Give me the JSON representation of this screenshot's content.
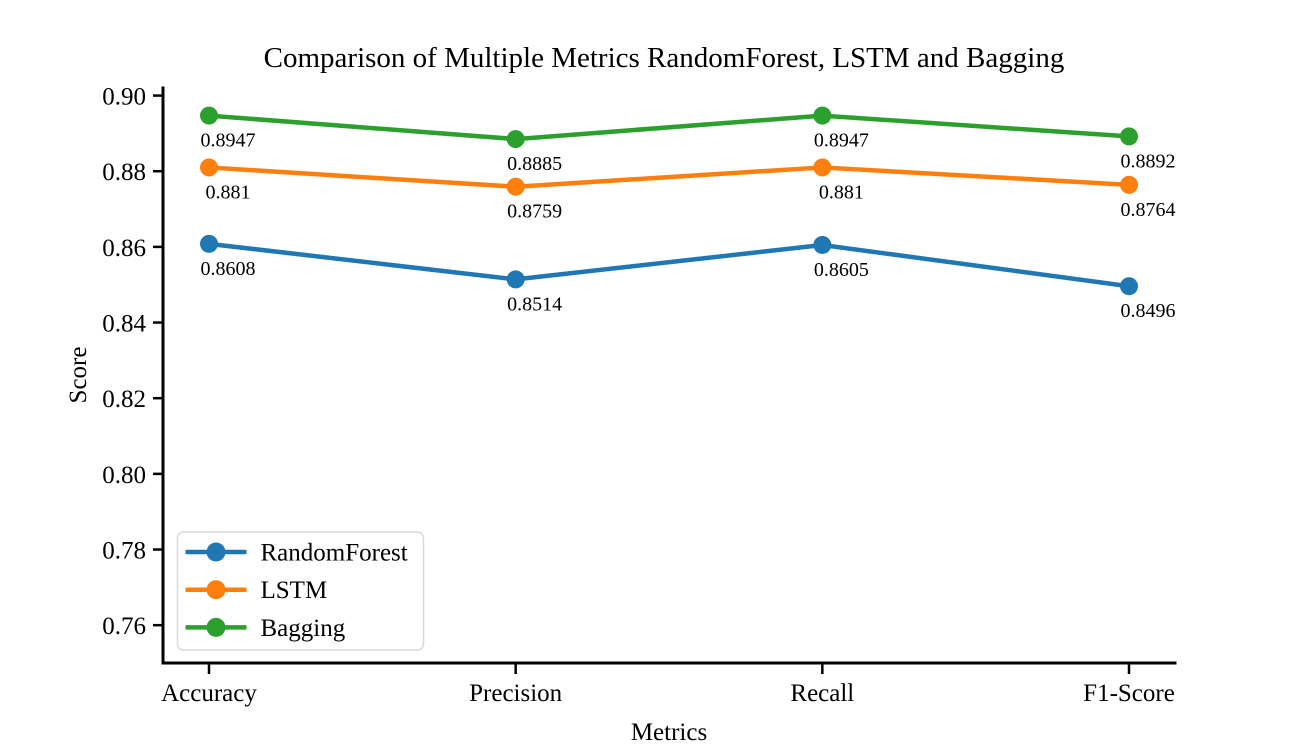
{
  "chart_data": {
    "type": "line",
    "title": "Comparison of Multiple Metrics RandomForest, LSTM and Bagging",
    "xlabel": "Metrics",
    "ylabel": "Score",
    "categories": [
      "Accuracy",
      "Precision",
      "Recall",
      "F1-Score"
    ],
    "series": [
      {
        "name": "RandomForest",
        "color": "#1f77b4",
        "values": [
          0.8608,
          0.8514,
          0.8605,
          0.8496
        ],
        "labels": [
          "0.8608",
          "0.8514",
          "0.8605",
          "0.8496"
        ]
      },
      {
        "name": "LSTM",
        "color": "#ff7f0e",
        "values": [
          0.881,
          0.8759,
          0.881,
          0.8764
        ],
        "labels": [
          "0.881",
          "0.8759",
          "0.881",
          "0.8764"
        ]
      },
      {
        "name": "Bagging",
        "color": "#2ca02c",
        "values": [
          0.8947,
          0.8885,
          0.8947,
          0.8892
        ],
        "labels": [
          "0.8947",
          "0.8885",
          "0.8947",
          "0.8892"
        ]
      }
    ],
    "yticks": [
      0.76,
      0.78,
      0.8,
      0.82,
      0.84,
      0.86,
      0.88,
      0.9
    ],
    "ytick_labels": [
      "0.76",
      "0.78",
      "0.80",
      "0.82",
      "0.84",
      "0.86",
      "0.88",
      "0.90"
    ],
    "ylim": [
      0.75,
      0.902
    ],
    "grid": false,
    "legend_position": "lower-left",
    "axis_color": "#000000",
    "legend_border_color": "#d9d9d9"
  }
}
